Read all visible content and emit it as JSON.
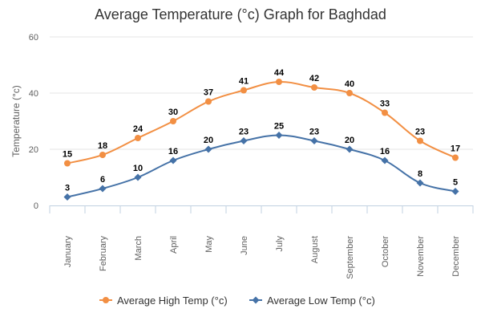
{
  "chart_data": {
    "type": "line",
    "title": "Average Temperature (°c) Graph for Baghdad",
    "xlabel": "",
    "ylabel": "Temperature (°c)",
    "ylim": [
      0,
      60
    ],
    "yticks": [
      0,
      20,
      40,
      60
    ],
    "categories": [
      "January",
      "February",
      "March",
      "April",
      "May",
      "June",
      "July",
      "August",
      "September",
      "October",
      "November",
      "December"
    ],
    "series": [
      {
        "name": "Average High Temp (°c)",
        "color": "#f28f43",
        "marker": "circle",
        "values": [
          15,
          18,
          24,
          30,
          37,
          41,
          44,
          42,
          40,
          33,
          23,
          17
        ]
      },
      {
        "name": "Average Low Temp (°c)",
        "color": "#4572a7",
        "marker": "diamond",
        "values": [
          3,
          6,
          10,
          16,
          20,
          23,
          25,
          23,
          20,
          16,
          8,
          5
        ]
      }
    ],
    "grid": true,
    "legend": "bottom-center",
    "data_labels": true
  }
}
